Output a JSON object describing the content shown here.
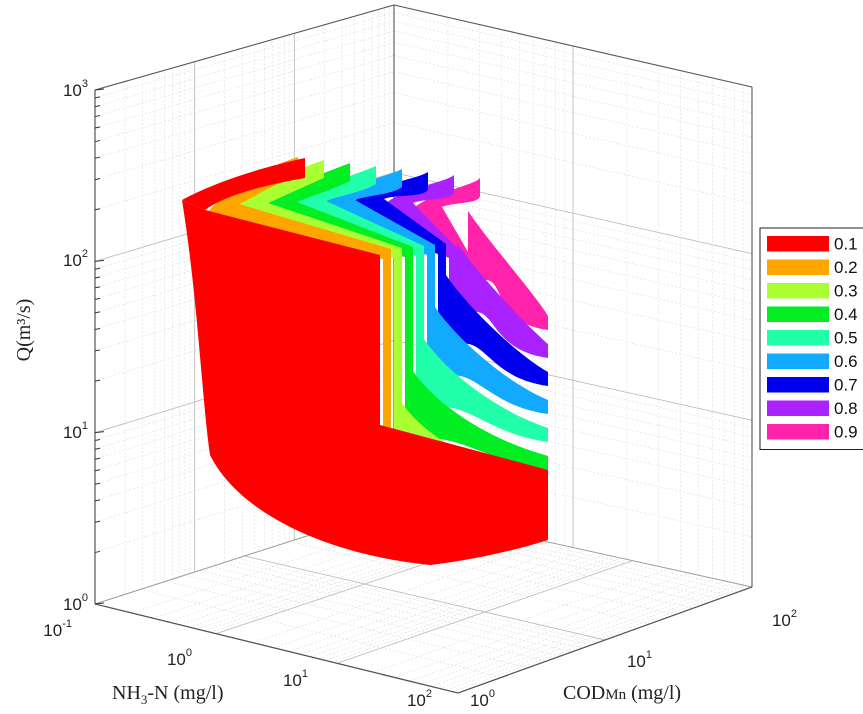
{
  "chart_data": {
    "type": "surface3d",
    "axes": {
      "x": {
        "label_main": "COD",
        "label_sub": "Mn",
        "label_tail": "  (mg/l)",
        "scale": "log",
        "ticks": [
          {
            "base": "10",
            "exp": "0"
          },
          {
            "base": "10",
            "exp": "1"
          },
          {
            "base": "10",
            "exp": "2"
          }
        ]
      },
      "y": {
        "label_main": "NH",
        "label_sub": "3",
        "label_tail": "-N (mg/l)",
        "scale": "log",
        "ticks": [
          {
            "base": "10",
            "exp": "-1"
          },
          {
            "base": "10",
            "exp": "0"
          },
          {
            "base": "10",
            "exp": "1"
          },
          {
            "base": "10",
            "exp": "2"
          }
        ]
      },
      "z": {
        "label": "Q(m³/s)",
        "scale": "log",
        "ticks": [
          {
            "base": "10",
            "exp": "0"
          },
          {
            "base": "10",
            "exp": "1"
          },
          {
            "base": "10",
            "exp": "2"
          },
          {
            "base": "10",
            "exp": "3"
          }
        ]
      }
    },
    "grid": true,
    "legend_position": "right",
    "series": [
      {
        "name": "0.1",
        "color": "#ff0000"
      },
      {
        "name": "0.2",
        "color": "#ffa500"
      },
      {
        "name": "0.3",
        "color": "#aaff33"
      },
      {
        "name": "0.4",
        "color": "#00ee22"
      },
      {
        "name": "0.5",
        "color": "#22ffaa"
      },
      {
        "name": "0.6",
        "color": "#11aaff"
      },
      {
        "name": "0.7",
        "color": "#0000ee"
      },
      {
        "name": "0.8",
        "color": "#aa22ff"
      },
      {
        "name": "0.9",
        "color": "#ff22aa"
      }
    ]
  }
}
